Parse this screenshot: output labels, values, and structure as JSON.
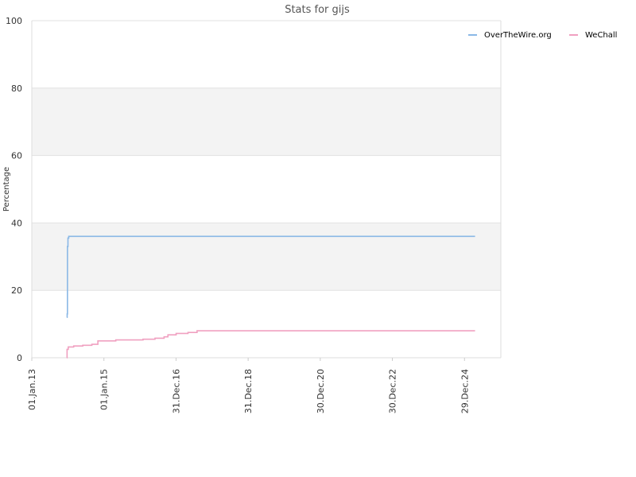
{
  "chart_data": {
    "type": "line",
    "title": "Stats for gijs",
    "xlabel": "",
    "ylabel": "Percentage",
    "ylim": [
      0,
      100
    ],
    "yticks": [
      0,
      20,
      40,
      60,
      80,
      100
    ],
    "x_range": [
      "2013-01-01",
      "2026-01-01"
    ],
    "xticks": [
      {
        "label": "01.Jan.13",
        "date": "2013-01-01"
      },
      {
        "label": "01.Jan.15",
        "date": "2015-01-01"
      },
      {
        "label": "31.Dec.16",
        "date": "2016-12-31"
      },
      {
        "label": "31.Dec.18",
        "date": "2018-12-31"
      },
      {
        "label": "30.Dec.20",
        "date": "2020-12-30"
      },
      {
        "label": "30.Dec.22",
        "date": "2022-12-30"
      },
      {
        "label": "29.Dec.24",
        "date": "2024-12-29"
      }
    ],
    "grid": "horizontal alternating bands",
    "legend_position": "top-right",
    "series": [
      {
        "name": "OverTheWire.org",
        "color": "#8ab8e6",
        "points": [
          {
            "x": "2013-12-20",
            "y": 12
          },
          {
            "x": "2013-12-25",
            "y": 13
          },
          {
            "x": "2013-12-28",
            "y": 33
          },
          {
            "x": "2014-01-02",
            "y": 35.5
          },
          {
            "x": "2014-01-10",
            "y": 36
          },
          {
            "x": "2025-04-15",
            "y": 36
          }
        ]
      },
      {
        "name": "WeChall",
        "color": "#f0a0c0",
        "points": [
          {
            "x": "2013-12-20",
            "y": 0
          },
          {
            "x": "2013-12-24",
            "y": 2.5
          },
          {
            "x": "2014-01-05",
            "y": 3.2
          },
          {
            "x": "2014-03-01",
            "y": 3.5
          },
          {
            "x": "2014-06-01",
            "y": 3.7
          },
          {
            "x": "2014-09-01",
            "y": 4
          },
          {
            "x": "2014-11-01",
            "y": 5
          },
          {
            "x": "2015-05-01",
            "y": 5.3
          },
          {
            "x": "2016-02-01",
            "y": 5.5
          },
          {
            "x": "2016-06-01",
            "y": 5.8
          },
          {
            "x": "2016-09-01",
            "y": 6.2
          },
          {
            "x": "2016-10-10",
            "y": 6.8
          },
          {
            "x": "2017-01-01",
            "y": 7.2
          },
          {
            "x": "2017-05-01",
            "y": 7.5
          },
          {
            "x": "2017-08-01",
            "y": 8
          },
          {
            "x": "2025-04-15",
            "y": 8
          }
        ]
      }
    ]
  }
}
